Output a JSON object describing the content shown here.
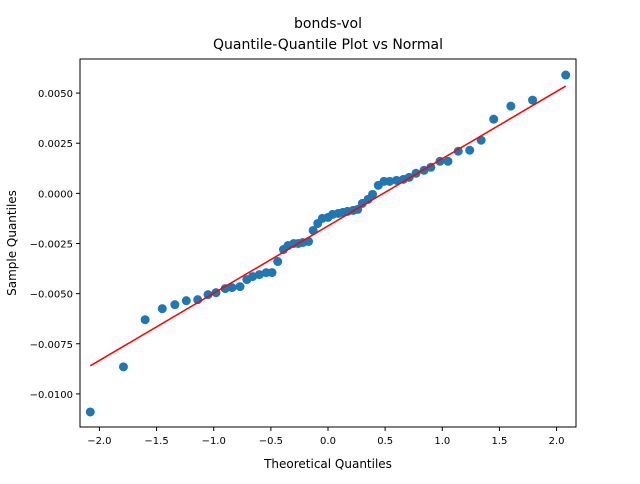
{
  "chart_data": {
    "type": "scatter",
    "title": "bonds-vol",
    "subtitle": "Quantile-Quantile Plot vs Normal",
    "xlabel": "Theoretical Quantiles",
    "ylabel": "Sample Quantiles",
    "xlim": [
      -2.17,
      2.17
    ],
    "ylim": [
      -0.01165,
      0.0067
    ],
    "xticks": [
      -2.0,
      -1.5,
      -1.0,
      -0.5,
      0.0,
      0.5,
      1.0,
      1.5,
      2.0
    ],
    "xtick_labels": [
      "−2.0",
      "−1.5",
      "−1.0",
      "−0.5",
      "0.0",
      "0.5",
      "1.0",
      "1.5",
      "2.0"
    ],
    "yticks": [
      0.005,
      0.0025,
      0.0,
      -0.0025,
      -0.005,
      -0.0075,
      -0.01
    ],
    "ytick_labels": [
      "0.0050",
      "0.0025",
      "0.0000",
      "−0.0025",
      "−0.0050",
      "−0.0075",
      "−0.0100"
    ],
    "grid": false,
    "point_color": "#1f77b4",
    "line_color": "#ff0000",
    "points": [
      [
        -2.08,
        -0.0109
      ],
      [
        -1.79,
        -0.00865
      ],
      [
        -1.6,
        -0.0063
      ],
      [
        -1.45,
        -0.00575
      ],
      [
        -1.34,
        -0.00555
      ],
      [
        -1.24,
        -0.00535
      ],
      [
        -1.14,
        -0.0053
      ],
      [
        -1.05,
        -0.00505
      ],
      [
        -0.98,
        -0.00495
      ],
      [
        -0.9,
        -0.00475
      ],
      [
        -0.84,
        -0.0047
      ],
      [
        -0.77,
        -0.00465
      ],
      [
        -0.71,
        -0.0043
      ],
      [
        -0.66,
        -0.00415
      ],
      [
        -0.6,
        -0.00405
      ],
      [
        -0.54,
        -0.00395
      ],
      [
        -0.49,
        -0.00395
      ],
      [
        -0.44,
        -0.0034
      ],
      [
        -0.39,
        -0.0028
      ],
      [
        -0.35,
        -0.0026
      ],
      [
        -0.3,
        -0.0025
      ],
      [
        -0.26,
        -0.0025
      ],
      [
        -0.22,
        -0.00245
      ],
      [
        -0.17,
        -0.0024
      ],
      [
        -0.13,
        -0.00185
      ],
      [
        -0.09,
        -0.0015
      ],
      [
        -0.05,
        -0.00125
      ],
      [
        0.0,
        -0.0012
      ],
      [
        0.04,
        -0.00105
      ],
      [
        0.09,
        -0.001
      ],
      [
        0.13,
        -0.00095
      ],
      [
        0.17,
        -0.0009
      ],
      [
        0.22,
        -0.00085
      ],
      [
        0.26,
        -0.0008
      ],
      [
        0.3,
        -0.0005
      ],
      [
        0.35,
        -0.0003
      ],
      [
        0.39,
        -5e-05
      ],
      [
        0.44,
        0.0004
      ],
      [
        0.49,
        0.0006
      ],
      [
        0.54,
        0.0006
      ],
      [
        0.6,
        0.00065
      ],
      [
        0.66,
        0.0007
      ],
      [
        0.71,
        0.0008
      ],
      [
        0.77,
        0.001
      ],
      [
        0.84,
        0.00115
      ],
      [
        0.9,
        0.0013
      ],
      [
        0.98,
        0.0016
      ],
      [
        1.05,
        0.0016
      ],
      [
        1.14,
        0.0021
      ],
      [
        1.24,
        0.00215
      ],
      [
        1.34,
        0.00265
      ],
      [
        1.45,
        0.0037
      ],
      [
        1.6,
        0.00435
      ],
      [
        1.79,
        0.00465
      ],
      [
        2.08,
        0.0059
      ]
    ],
    "reference_line": [
      [
        -2.08,
        -0.0086
      ],
      [
        2.08,
        0.00535
      ]
    ]
  }
}
